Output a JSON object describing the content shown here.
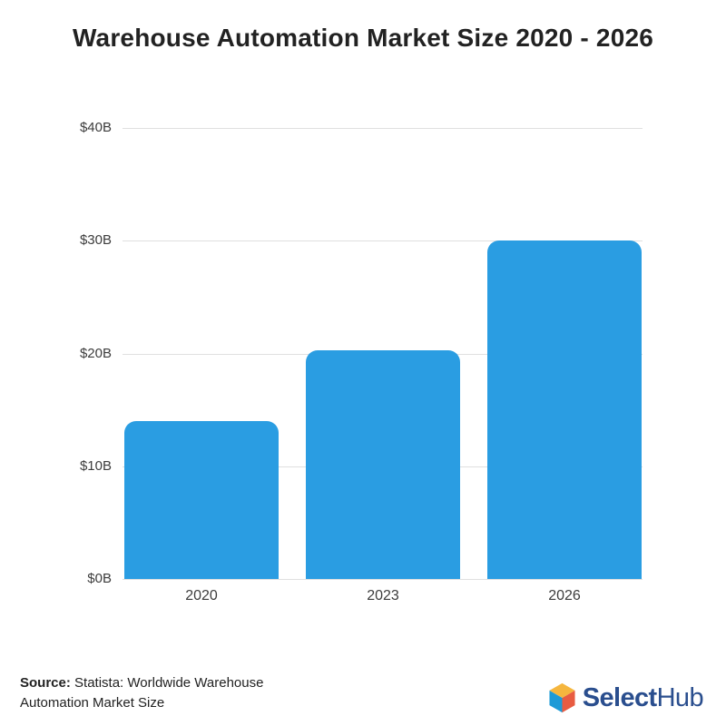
{
  "chart_data": {
    "type": "bar",
    "title": "Warehouse Automation Market Size 2020 - 2026",
    "categories": [
      "2020",
      "2023",
      "2026"
    ],
    "values": [
      14,
      20.3,
      30
    ],
    "xlabel": "",
    "ylabel": "",
    "ylim": [
      0,
      40
    ],
    "y_ticks": [
      {
        "label": "$0B",
        "value": 0
      },
      {
        "label": "$10B",
        "value": 10
      },
      {
        "label": "$20B",
        "value": 20
      },
      {
        "label": "$30B",
        "value": 30
      },
      {
        "label": "$40B",
        "value": 40
      }
    ],
    "grid": true,
    "legend": false,
    "bar_color": "#2A9DE2",
    "gridline_color": "#E0E0E0",
    "axis_label_color": "#3C3C3C",
    "title_color": "#222222"
  },
  "footer": {
    "source": {
      "label": "Source:",
      "line1_rest": " Statista: Worldwide Warehouse",
      "line2": "Automation Market Size"
    },
    "logo": {
      "name": "SelectHub",
      "text_bold": "Select",
      "text_regular": "Hub",
      "text_color": "#2A4E8E",
      "cube_top_color": "#F5B63E",
      "cube_left_color": "#1D9AD7",
      "cube_right_color": "#E85C41"
    }
  }
}
